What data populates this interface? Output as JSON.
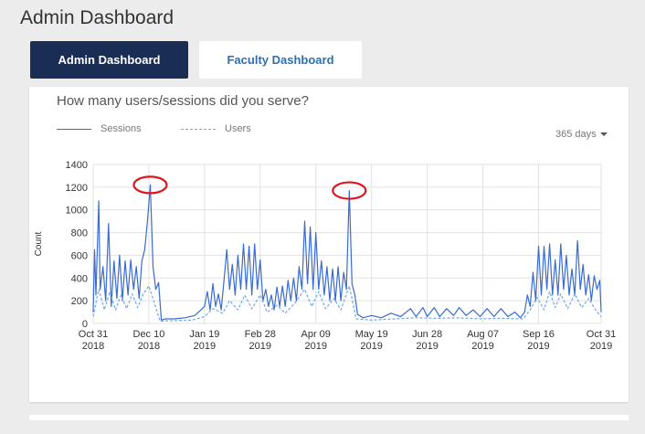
{
  "page": {
    "title": "Admin Dashboard"
  },
  "tabs": [
    {
      "label": "Admin Dashboard",
      "active": true
    },
    {
      "label": "Faculty Dashboard",
      "active": false
    }
  ],
  "card": {
    "title": "How many users/sessions did you serve?",
    "range_selector": {
      "selected": "365 days"
    }
  },
  "colors": {
    "header_bg": "#1a2e55",
    "link": "#2d6fb3",
    "sessions": "#3a6bd0",
    "users": "#6fa8ee",
    "highlight_circle": "#e0141e"
  },
  "chart_data": {
    "type": "line",
    "title": "",
    "xlabel": "",
    "ylabel": "Count",
    "ylim": [
      0,
      1400
    ],
    "yticks": [
      0,
      200,
      400,
      600,
      800,
      1000,
      1200,
      1400
    ],
    "xlim": [
      "2018-10-31",
      "2019-10-31"
    ],
    "xticks": [
      {
        "date": "2018-10-31",
        "label": [
          "Oct 31",
          "2018"
        ]
      },
      {
        "date": "2018-12-10",
        "label": [
          "Dec 10",
          "2018"
        ]
      },
      {
        "date": "2019-01-19",
        "label": [
          "Jan 19",
          "2019"
        ]
      },
      {
        "date": "2019-02-28",
        "label": [
          "Feb 28",
          "2019"
        ]
      },
      {
        "date": "2019-04-09",
        "label": [
          "Apr 09",
          "2019"
        ]
      },
      {
        "date": "2019-05-19",
        "label": [
          "May 19",
          "2019"
        ]
      },
      {
        "date": "2019-06-28",
        "label": [
          "Jun 28",
          "2019"
        ]
      },
      {
        "date": "2019-08-07",
        "label": [
          "Aug 07",
          "2019"
        ]
      },
      {
        "date": "2019-09-16",
        "label": [
          "Sep 16",
          "2019"
        ]
      },
      {
        "date": "2019-10-31",
        "label": [
          "Oct 31",
          "2019"
        ]
      }
    ],
    "grid": true,
    "legend": "top-left",
    "series": [
      {
        "name": "Sessions",
        "style": "solid",
        "points": [
          [
            "2018-10-31",
            100
          ],
          [
            "2018-11-01",
            650
          ],
          [
            "2018-11-02",
            250
          ],
          [
            "2018-11-04",
            1080
          ],
          [
            "2018-11-05",
            300
          ],
          [
            "2018-11-07",
            500
          ],
          [
            "2018-11-09",
            200
          ],
          [
            "2018-11-11",
            880
          ],
          [
            "2018-11-13",
            150
          ],
          [
            "2018-11-15",
            550
          ],
          [
            "2018-11-17",
            220
          ],
          [
            "2018-11-19",
            600
          ],
          [
            "2018-11-21",
            200
          ],
          [
            "2018-11-23",
            550
          ],
          [
            "2018-11-25",
            250
          ],
          [
            "2018-11-27",
            560
          ],
          [
            "2018-11-29",
            300
          ],
          [
            "2018-12-01",
            500
          ],
          [
            "2018-12-03",
            220
          ],
          [
            "2018-12-05",
            550
          ],
          [
            "2018-12-07",
            650
          ],
          [
            "2018-12-09",
            900
          ],
          [
            "2018-12-11",
            1220
          ],
          [
            "2018-12-13",
            500
          ],
          [
            "2018-12-15",
            300
          ],
          [
            "2018-12-17",
            360
          ],
          [
            "2018-12-19",
            30
          ],
          [
            "2018-12-22",
            40
          ],
          [
            "2018-12-28",
            40
          ],
          [
            "2019-01-05",
            50
          ],
          [
            "2019-01-12",
            70
          ],
          [
            "2019-01-19",
            150
          ],
          [
            "2019-01-21",
            280
          ],
          [
            "2019-01-23",
            120
          ],
          [
            "2019-01-25",
            350
          ],
          [
            "2019-01-27",
            150
          ],
          [
            "2019-01-29",
            260
          ],
          [
            "2019-01-31",
            120
          ],
          [
            "2019-02-02",
            380
          ],
          [
            "2019-02-04",
            650
          ],
          [
            "2019-02-06",
            300
          ],
          [
            "2019-02-08",
            520
          ],
          [
            "2019-02-10",
            250
          ],
          [
            "2019-02-12",
            600
          ],
          [
            "2019-02-14",
            300
          ],
          [
            "2019-02-16",
            700
          ],
          [
            "2019-02-18",
            300
          ],
          [
            "2019-02-20",
            680
          ],
          [
            "2019-02-22",
            250
          ],
          [
            "2019-02-24",
            700
          ],
          [
            "2019-02-26",
            300
          ],
          [
            "2019-02-28",
            560
          ],
          [
            "2019-03-02",
            200
          ],
          [
            "2019-03-04",
            300
          ],
          [
            "2019-03-06",
            150
          ],
          [
            "2019-03-08",
            250
          ],
          [
            "2019-03-10",
            120
          ],
          [
            "2019-03-12",
            320
          ],
          [
            "2019-03-14",
            150
          ],
          [
            "2019-03-16",
            330
          ],
          [
            "2019-03-18",
            150
          ],
          [
            "2019-03-20",
            380
          ],
          [
            "2019-03-22",
            200
          ],
          [
            "2019-03-24",
            400
          ],
          [
            "2019-03-26",
            200
          ],
          [
            "2019-03-28",
            500
          ],
          [
            "2019-03-30",
            300
          ],
          [
            "2019-04-01",
            900
          ],
          [
            "2019-04-03",
            350
          ],
          [
            "2019-04-05",
            850
          ],
          [
            "2019-04-07",
            300
          ],
          [
            "2019-04-09",
            800
          ],
          [
            "2019-04-11",
            300
          ],
          [
            "2019-04-13",
            550
          ],
          [
            "2019-04-15",
            250
          ],
          [
            "2019-04-17",
            500
          ],
          [
            "2019-04-19",
            200
          ],
          [
            "2019-04-21",
            480
          ],
          [
            "2019-04-23",
            200
          ],
          [
            "2019-04-25",
            500
          ],
          [
            "2019-04-27",
            200
          ],
          [
            "2019-04-29",
            450
          ],
          [
            "2019-05-01",
            300
          ],
          [
            "2019-05-03",
            1170
          ],
          [
            "2019-05-05",
            350
          ],
          [
            "2019-05-07",
            250
          ],
          [
            "2019-05-09",
            80
          ],
          [
            "2019-05-13",
            50
          ],
          [
            "2019-05-19",
            70
          ],
          [
            "2019-05-26",
            50
          ],
          [
            "2019-06-02",
            90
          ],
          [
            "2019-06-09",
            60
          ],
          [
            "2019-06-16",
            130
          ],
          [
            "2019-06-20",
            60
          ],
          [
            "2019-06-25",
            140
          ],
          [
            "2019-06-28",
            60
          ],
          [
            "2019-07-03",
            140
          ],
          [
            "2019-07-07",
            60
          ],
          [
            "2019-07-12",
            130
          ],
          [
            "2019-07-17",
            70
          ],
          [
            "2019-07-21",
            140
          ],
          [
            "2019-07-26",
            70
          ],
          [
            "2019-07-31",
            120
          ],
          [
            "2019-08-05",
            60
          ],
          [
            "2019-08-10",
            130
          ],
          [
            "2019-08-15",
            60
          ],
          [
            "2019-08-20",
            130
          ],
          [
            "2019-08-25",
            60
          ],
          [
            "2019-08-30",
            100
          ],
          [
            "2019-09-03",
            50
          ],
          [
            "2019-09-06",
            100
          ],
          [
            "2019-09-08",
            250
          ],
          [
            "2019-09-10",
            150
          ],
          [
            "2019-09-12",
            450
          ],
          [
            "2019-09-14",
            200
          ],
          [
            "2019-09-16",
            680
          ],
          [
            "2019-09-18",
            250
          ],
          [
            "2019-09-20",
            680
          ],
          [
            "2019-09-22",
            300
          ],
          [
            "2019-09-24",
            700
          ],
          [
            "2019-09-26",
            250
          ],
          [
            "2019-09-28",
            560
          ],
          [
            "2019-09-30",
            250
          ],
          [
            "2019-10-02",
            700
          ],
          [
            "2019-10-04",
            300
          ],
          [
            "2019-10-06",
            600
          ],
          [
            "2019-10-08",
            250
          ],
          [
            "2019-10-10",
            480
          ],
          [
            "2019-10-12",
            250
          ],
          [
            "2019-10-14",
            730
          ],
          [
            "2019-10-16",
            300
          ],
          [
            "2019-10-18",
            520
          ],
          [
            "2019-10-20",
            250
          ],
          [
            "2019-10-22",
            430
          ],
          [
            "2019-10-24",
            200
          ],
          [
            "2019-10-26",
            420
          ],
          [
            "2019-10-28",
            300
          ],
          [
            "2019-10-30",
            380
          ],
          [
            "2019-10-31",
            100
          ]
        ]
      },
      {
        "name": "Users",
        "style": "dashed",
        "points": [
          [
            "2018-10-31",
            60
          ],
          [
            "2018-11-04",
            300
          ],
          [
            "2018-11-08",
            120
          ],
          [
            "2018-11-12",
            280
          ],
          [
            "2018-11-16",
            120
          ],
          [
            "2018-11-20",
            250
          ],
          [
            "2018-11-24",
            130
          ],
          [
            "2018-11-28",
            260
          ],
          [
            "2018-12-02",
            140
          ],
          [
            "2018-12-06",
            260
          ],
          [
            "2018-12-10",
            330
          ],
          [
            "2018-12-14",
            180
          ],
          [
            "2018-12-18",
            20
          ],
          [
            "2018-12-28",
            25
          ],
          [
            "2019-01-10",
            30
          ],
          [
            "2019-01-19",
            60
          ],
          [
            "2019-01-25",
            130
          ],
          [
            "2019-02-01",
            90
          ],
          [
            "2019-02-06",
            200
          ],
          [
            "2019-02-12",
            120
          ],
          [
            "2019-02-17",
            250
          ],
          [
            "2019-02-22",
            130
          ],
          [
            "2019-02-28",
            250
          ],
          [
            "2019-03-05",
            100
          ],
          [
            "2019-03-12",
            160
          ],
          [
            "2019-03-18",
            90
          ],
          [
            "2019-03-25",
            180
          ],
          [
            "2019-04-01",
            300
          ],
          [
            "2019-04-06",
            150
          ],
          [
            "2019-04-11",
            280
          ],
          [
            "2019-04-16",
            130
          ],
          [
            "2019-04-22",
            220
          ],
          [
            "2019-04-27",
            120
          ],
          [
            "2019-05-03",
            330
          ],
          [
            "2019-05-08",
            40
          ],
          [
            "2019-05-19",
            30
          ],
          [
            "2019-06-05",
            40
          ],
          [
            "2019-06-20",
            50
          ],
          [
            "2019-07-05",
            45
          ],
          [
            "2019-07-20",
            50
          ],
          [
            "2019-08-05",
            40
          ],
          [
            "2019-08-20",
            45
          ],
          [
            "2019-09-05",
            40
          ],
          [
            "2019-09-10",
            120
          ],
          [
            "2019-09-15",
            230
          ],
          [
            "2019-09-20",
            120
          ],
          [
            "2019-09-24",
            280
          ],
          [
            "2019-09-28",
            140
          ],
          [
            "2019-10-02",
            260
          ],
          [
            "2019-10-07",
            130
          ],
          [
            "2019-10-12",
            260
          ],
          [
            "2019-10-17",
            140
          ],
          [
            "2019-10-22",
            220
          ],
          [
            "2019-10-27",
            120
          ],
          [
            "2019-10-31",
            60
          ]
        ]
      }
    ],
    "annotations": [
      {
        "type": "circle",
        "date": "2018-12-11",
        "value": 1220
      },
      {
        "type": "circle",
        "date": "2019-05-03",
        "value": 1170
      }
    ]
  }
}
